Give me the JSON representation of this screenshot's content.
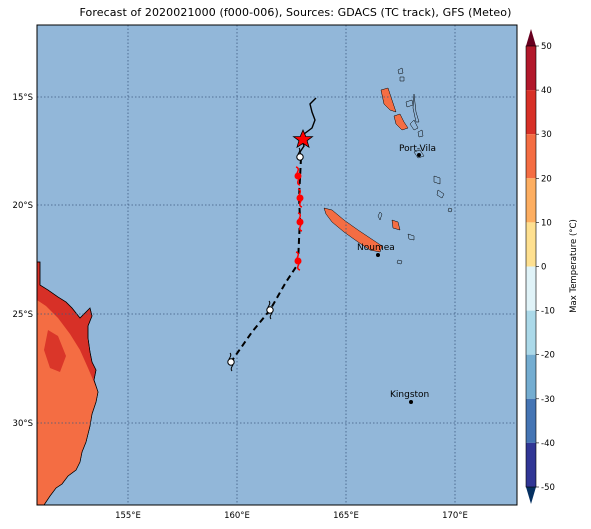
{
  "title": "Forecast of 2020021000 (f000-006), Sources: GDACS (TC track), GFS (Meteo)",
  "lat_labels": [
    "15°S",
    "20°S",
    "25°S",
    "30°S"
  ],
  "lon_labels": [
    "155°E",
    "160°E",
    "165°E",
    "170°E"
  ],
  "places": [
    {
      "name": "Port-Vila"
    },
    {
      "name": "Noumea"
    },
    {
      "name": "Kingston"
    }
  ],
  "colorbar": {
    "label": "Max Temperature (°C)",
    "ticks": [
      "50",
      "40",
      "30",
      "20",
      "10",
      "0",
      "-10",
      "-20",
      "-30",
      "-40",
      "-50"
    ],
    "colors": [
      "#67001f",
      "#b2182b",
      "#d6604d",
      "#f4a582",
      "#fddbc7",
      "#f7f7f7",
      "#d1e5f0",
      "#92c5de",
      "#4393c3",
      "#2166ac",
      "#053061"
    ]
  },
  "colors": {
    "ocean": "#92b7d9",
    "land_hot": "#d73027",
    "land_warm": "#f46d43",
    "track": "#000000",
    "storm_symbol": "#ff0000"
  }
}
